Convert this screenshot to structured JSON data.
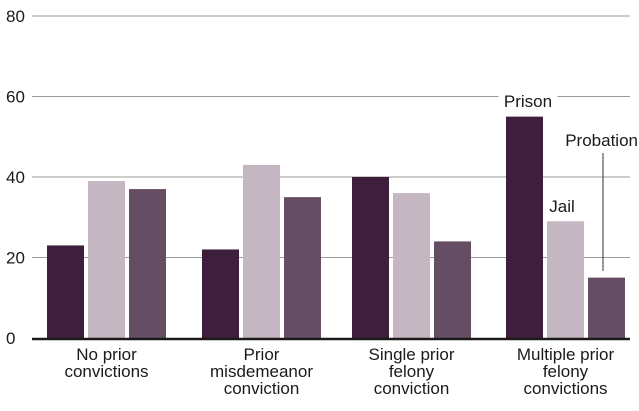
{
  "chart_data": {
    "type": "bar",
    "categories": [
      [
        "No prior",
        "convictions"
      ],
      [
        "Prior",
        "misdemeanor",
        "conviction"
      ],
      [
        "Single prior",
        "felony",
        "conviction"
      ],
      [
        "Multiple prior",
        "felony",
        "convictions"
      ]
    ],
    "series": [
      {
        "name": "Prison",
        "color": "#3d1f3c",
        "values": [
          23,
          22,
          40,
          55
        ]
      },
      {
        "name": "Jail",
        "color": "#c4b7c2",
        "values": [
          39,
          43,
          36,
          29
        ]
      },
      {
        "name": "Probation",
        "color": "#654e63",
        "values": [
          37,
          35,
          24,
          15
        ]
      }
    ],
    "y_ticks": [
      0,
      20,
      40,
      60,
      80
    ],
    "ylim": [
      0,
      80
    ],
    "grid": true,
    "title": "",
    "xlabel": "",
    "ylabel": ""
  }
}
